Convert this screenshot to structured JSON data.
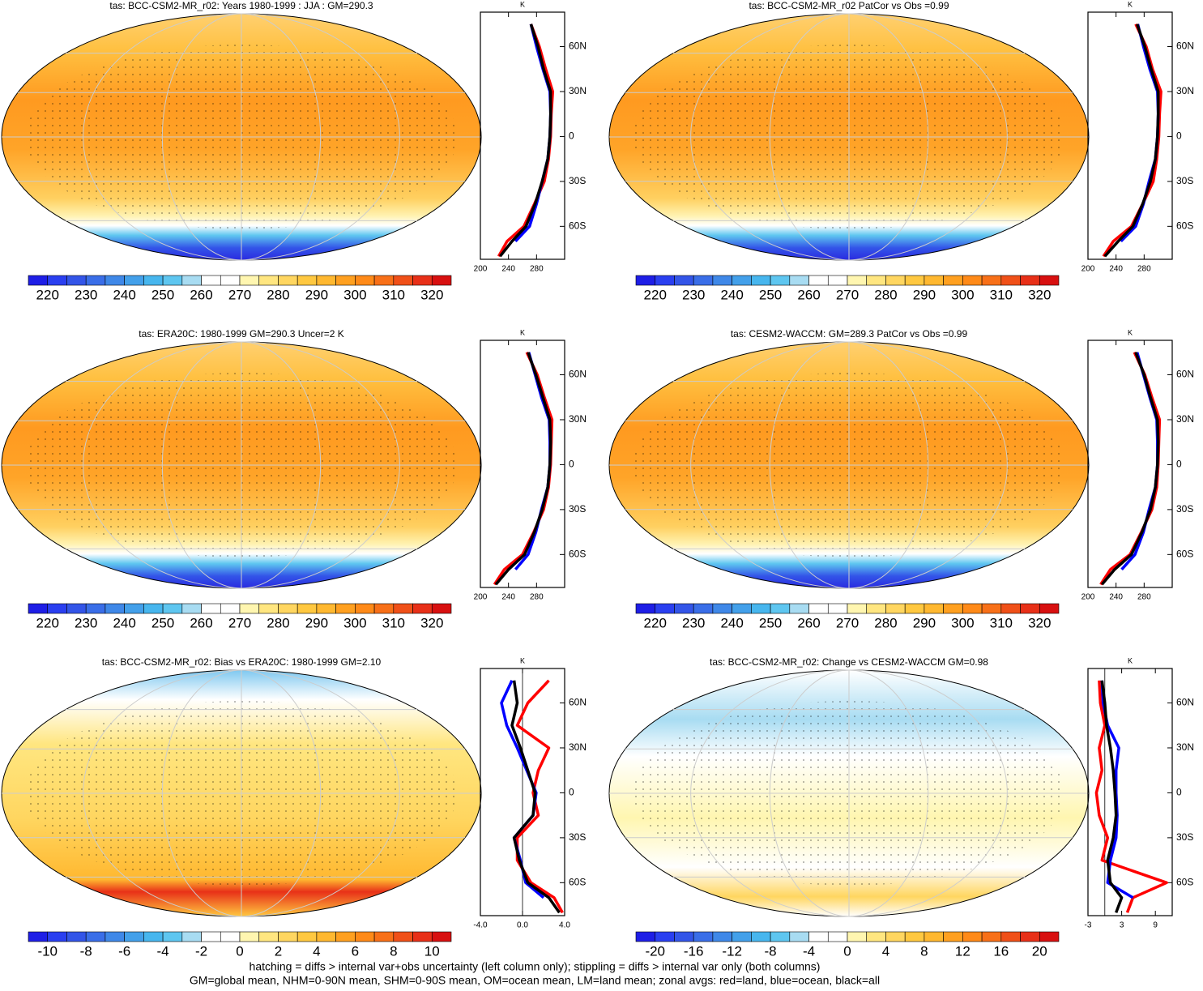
{
  "palette": [
    "#1e1ee6",
    "#2a3ff0",
    "#3355e8",
    "#3a6ee8",
    "#3f88e8",
    "#43a0ea",
    "#47b6ee",
    "#5ec6f0",
    "#a8dcf2",
    "#ffffff",
    "#ffffff",
    "#fff6b0",
    "#ffe680",
    "#ffd660",
    "#ffc840",
    "#ffb830",
    "#ffa020",
    "#ff8a18",
    "#f87018",
    "#f05018",
    "#e83018",
    "#d81010"
  ],
  "footer": [
    "hatching = diffs > internal var+obs uncertainty (left column only); stippling = diffs > internal var only (both columns)",
    "GM=global mean, NHM=0-90N mean, SHM=0-90S mean, OM=ocean mean, LM=land mean; zonal avgs: red=land, blue=ocean, black=all"
  ],
  "chart_data": [
    {
      "type": "map",
      "title": "tas: BCC-CSM2-MR_r02: Years 1980-1999 : JJA : GM=290.3",
      "colorbar": {
        "ticks": [
          220,
          230,
          240,
          250,
          260,
          270,
          280,
          290,
          300,
          310,
          320
        ]
      },
      "zonal": {
        "unit": "K",
        "lat": [
          -80,
          -70,
          -60,
          -45,
          -30,
          -15,
          0,
          15,
          30,
          45,
          60,
          75
        ],
        "xlim": [
          200,
          320
        ],
        "xticks": [
          200,
          240,
          280
        ],
        "ylim": [
          -82,
          83
        ],
        "yticks": [
          {
            "value": 60,
            "label": "60N"
          },
          {
            "value": 30,
            "label": "30N"
          },
          0,
          {
            "value": -30,
            "label": "30S"
          },
          {
            "value": -60,
            "label": "60S"
          }
        ],
        "series": [
          {
            "color": "#ff0000",
            "values": [
              226,
              238,
              262,
              277,
              291,
              297,
              300,
              301,
              303,
              293,
              284,
              272
            ]
          },
          {
            "color": "#0000ff",
            "values": [
              null,
              250,
              270,
              280,
              288,
              296,
              299,
              300,
              299,
              289,
              280,
              272
            ]
          },
          {
            "color": "#000000",
            "values": [
              228,
              245,
              265,
              278,
              288,
              296,
              299,
              300,
              300,
              290,
              282,
              272
            ]
          }
        ]
      }
    },
    {
      "type": "map",
      "title": "tas: BCC-CSM2-MR_r02 PatCor vs Obs =0.99",
      "colorbar": {
        "ticks": [
          220,
          230,
          240,
          250,
          260,
          270,
          280,
          290,
          300,
          310,
          320
        ]
      },
      "zonal": {
        "unit": "K",
        "lat": [
          -80,
          -70,
          -60,
          -45,
          -30,
          -15,
          0,
          15,
          30,
          45,
          60,
          75
        ],
        "xlim": [
          200,
          320
        ],
        "xticks": [
          200,
          240,
          280
        ],
        "ylim": [
          -82,
          83
        ],
        "yticks": [
          {
            "value": 60,
            "label": "60N"
          },
          {
            "value": 30,
            "label": "30N"
          },
          0,
          {
            "value": -30,
            "label": "30S"
          },
          {
            "value": -60,
            "label": "60S"
          }
        ],
        "series": [
          {
            "color": "#ff0000",
            "values": [
              222,
              236,
              262,
              278,
              293,
              298,
              301,
              302,
              304,
              292,
              283,
              268
            ]
          },
          {
            "color": "#0000ff",
            "values": [
              null,
              247,
              268,
              279,
              287,
              296,
              299,
              300,
              299,
              288,
              279,
              271
            ]
          },
          {
            "color": "#000000",
            "values": [
              224,
              243,
              264,
              278,
              289,
              296,
              299,
              300,
              300,
              290,
              281,
              270
            ]
          }
        ]
      }
    },
    {
      "type": "map",
      "title": "tas: ERA20C: 1980-1999 GM=290.3 Uncer=2 K",
      "colorbar": {
        "ticks": [
          220,
          230,
          240,
          250,
          260,
          270,
          280,
          290,
          300,
          310,
          320
        ]
      },
      "zonal": {
        "unit": "K",
        "lat": [
          -80,
          -70,
          -60,
          -45,
          -30,
          -15,
          0,
          15,
          30,
          45,
          60,
          75
        ],
        "xlim": [
          200,
          320
        ],
        "xticks": [
          200,
          240,
          280
        ],
        "ylim": [
          -82,
          83
        ],
        "yticks": [
          {
            "value": 60,
            "label": "60N"
          },
          {
            "value": 30,
            "label": "30N"
          },
          0,
          {
            "value": -30,
            "label": "30S"
          },
          {
            "value": -60,
            "label": "60S"
          }
        ],
        "series": [
          {
            "color": "#ff0000",
            "values": [
              220,
              234,
              260,
              276,
              290,
              297,
              300,
              301,
              302,
              291,
              281,
              266
            ]
          },
          {
            "color": "#0000ff",
            "values": [
              null,
              250,
              268,
              279,
              287,
              296,
              299,
              299,
              298,
              287,
              278,
              269
            ]
          },
          {
            "color": "#000000",
            "values": [
              222,
              240,
              263,
              277,
              288,
              296,
              299,
              300,
              299,
              289,
              279,
              268
            ]
          }
        ]
      }
    },
    {
      "type": "map",
      "title": "tas: CESM2-WACCM: GM=289.3 PatCor vs Obs =0.99",
      "colorbar": {
        "ticks": [
          220,
          230,
          240,
          250,
          260,
          270,
          280,
          290,
          300,
          310,
          320
        ]
      },
      "zonal": {
        "unit": "K",
        "lat": [
          -80,
          -70,
          -60,
          -45,
          -30,
          -15,
          0,
          15,
          30,
          45,
          60,
          75
        ],
        "xlim": [
          200,
          320
        ],
        "xticks": [
          200,
          240,
          280
        ],
        "ylim": [
          -82,
          83
        ],
        "yticks": [
          {
            "value": 60,
            "label": "60N"
          },
          {
            "value": 30,
            "label": "30N"
          },
          0,
          {
            "value": -30,
            "label": "30S"
          },
          {
            "value": -60,
            "label": "60S"
          }
        ],
        "series": [
          {
            "color": "#ff0000",
            "values": [
              218,
              232,
              260,
              276,
              291,
              298,
              300,
              301,
              302,
              291,
              281,
              266
            ]
          },
          {
            "color": "#0000ff",
            "values": [
              null,
              248,
              267,
              279,
              287,
              296,
              299,
              299,
              298,
              288,
              279,
              270
            ]
          },
          {
            "color": "#000000",
            "values": [
              220,
              238,
              262,
              277,
              289,
              296,
              299,
              300,
              299,
              289,
              280,
              268
            ]
          }
        ]
      }
    },
    {
      "type": "map",
      "title": "tas: BCC-CSM2-MR_r02: Bias vs ERA20C: 1980-1999 GM=2.10",
      "colorbar": {
        "ticks": [
          -10,
          -8,
          -6,
          -4,
          -2,
          0,
          2,
          4,
          6,
          8,
          10
        ]
      },
      "zonal": {
        "unit": "K",
        "lat": [
          -80,
          -70,
          -60,
          -45,
          -30,
          -15,
          0,
          15,
          30,
          45,
          60,
          75
        ],
        "xlim": [
          -4,
          4
        ],
        "xticks": [
          {
            "value": -4,
            "label": "-4.0"
          },
          {
            "value": 0,
            "label": "0.0"
          },
          {
            "value": 4,
            "label": "4.0"
          }
        ],
        "ylim": [
          -82,
          83
        ],
        "yticks": [
          {
            "value": 60,
            "label": "60N"
          },
          {
            "value": 30,
            "label": "30N"
          },
          0,
          {
            "value": -30,
            "label": "30S"
          },
          {
            "value": -60,
            "label": "60S"
          }
        ],
        "zero_line": true,
        "series": [
          {
            "color": "#ff0000",
            "values": [
              3.8,
              3.0,
              0.8,
              -0.5,
              -0.5,
              1.5,
              1.0,
              1.5,
              2.5,
              -0.5,
              0.5,
              2.5
            ]
          },
          {
            "color": "#0000ff",
            "values": [
              null,
              2.0,
              0.3,
              -0.2,
              -0.8,
              1.0,
              1.3,
              0.4,
              -0.5,
              -1.5,
              -2.0,
              -1.0
            ]
          },
          {
            "color": "#000000",
            "values": [
              3.5,
              2.5,
              0.5,
              -0.3,
              -0.8,
              1.0,
              1.2,
              0.5,
              -0.2,
              -1.0,
              -0.5,
              -0.8
            ]
          }
        ]
      }
    },
    {
      "type": "map",
      "title": "tas: BCC-CSM2-MR_r02: Change vs CESM2-WACCM GM=0.98",
      "colorbar": {
        "ticks": [
          -20,
          -16,
          -12,
          -8,
          -4,
          0,
          4,
          8,
          12,
          16,
          20
        ]
      },
      "zonal": {
        "unit": "K",
        "lat": [
          -80,
          -70,
          -60,
          -45,
          -30,
          -15,
          0,
          15,
          30,
          45,
          60,
          75
        ],
        "xlim": [
          -3,
          12
        ],
        "xticks": [
          -3,
          3,
          9
        ],
        "ylim": [
          -82,
          83
        ],
        "yticks": [
          {
            "value": 60,
            "label": "60N"
          },
          {
            "value": 30,
            "label": "30N"
          },
          0,
          {
            "value": -30,
            "label": "30S"
          },
          {
            "value": -60,
            "label": "60S"
          }
        ],
        "zero_line": true,
        "series": [
          {
            "color": "#ff0000",
            "values": [
              4,
              5,
              11,
              -0.5,
              0.5,
              -1,
              -1.5,
              -0.5,
              -1,
              0,
              -0.8,
              -1
            ]
          },
          {
            "color": "#0000ff",
            "values": [
              null,
              5,
              0.5,
              1,
              2,
              2.2,
              2,
              2,
              2.5,
              0.5,
              -0.3,
              -0.5
            ]
          },
          {
            "color": "#000000",
            "values": [
              2,
              3,
              1,
              0.5,
              1.5,
              2,
              1.8,
              1.5,
              1,
              0.3,
              0,
              -0.5
            ]
          }
        ]
      }
    }
  ]
}
